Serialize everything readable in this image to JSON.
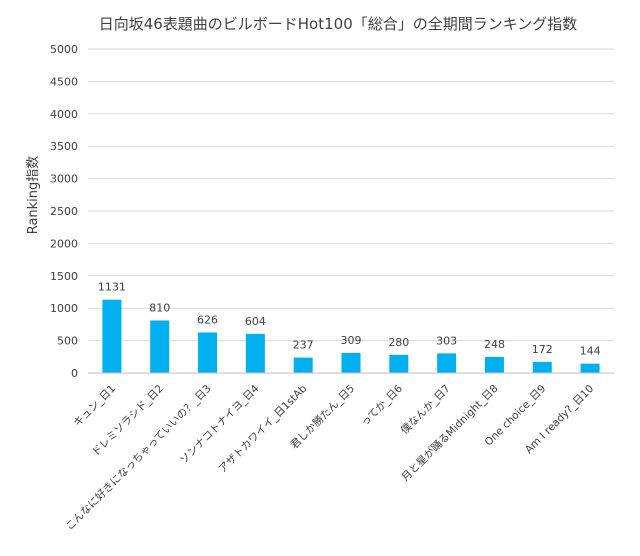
{
  "chart_data": {
    "type": "bar",
    "title": "日向坂46表題曲のビルボードHot100「総合」の全期間ランキング指数",
    "ylabel": "Ranking指数",
    "xlabel": "",
    "ylim": [
      0,
      5000
    ],
    "yticks": [
      0,
      500,
      1000,
      1500,
      2000,
      2500,
      3000,
      3500,
      4000,
      4500,
      5000
    ],
    "grid": true,
    "legend": "none",
    "bar_color": "#00b0f0",
    "categories": [
      "キュン_日1",
      "ドレミソラシド_日2",
      "こんなに好きになっちゃっていいの？_日3",
      "ソンナコトナイヨ_日4",
      "アザトカワイイ_日1stAb",
      "君しか勝たん_日5",
      "ってか_日6",
      "僕なんか_日7",
      "月と星が踊るMidnight_日8",
      "One choice_日9",
      "Am I ready?_日10"
    ],
    "values": [
      1131,
      810,
      626,
      604,
      237,
      309,
      280,
      303,
      248,
      172,
      144
    ]
  }
}
